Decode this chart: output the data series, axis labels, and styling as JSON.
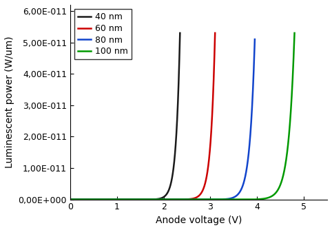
{
  "title": "",
  "xlabel": "Anode voltage (V)",
  "ylabel_display": "Luminescent power (W/um)",
  "xlim": [
    0,
    5.5
  ],
  "ylim": [
    0,
    6.2e-11
  ],
  "yticks": [
    0,
    1e-11,
    2e-11,
    3e-11,
    4e-11,
    5e-11,
    6e-11
  ],
  "ytick_labels": [
    "0,00E+000",
    "1,00E-011",
    "2,00E-011",
    "3,00E-011",
    "4,00E-011",
    "5,00E-011",
    "6,00E-011"
  ],
  "xticks": [
    0,
    1,
    2,
    3,
    4,
    5
  ],
  "curves": [
    {
      "label": "40 nm",
      "color": "#1a1a1a",
      "x_start": 1.7,
      "x_end": 2.35,
      "k": 12.0,
      "peak": 5.3e-11
    },
    {
      "label": "60 nm",
      "color": "#cc0000",
      "x_start": 2.35,
      "x_end": 3.1,
      "k": 11.0,
      "peak": 5.3e-11
    },
    {
      "label": "80 nm",
      "color": "#1144cc",
      "x_start": 3.2,
      "x_end": 3.95,
      "k": 9.5,
      "peak": 5.1e-11
    },
    {
      "label": "100 nm",
      "color": "#009900",
      "x_start": 3.9,
      "x_end": 4.8,
      "k": 8.0,
      "peak": 5.3e-11
    }
  ],
  "legend_loc": "upper left",
  "background_color": "#ffffff",
  "linewidth": 1.8
}
